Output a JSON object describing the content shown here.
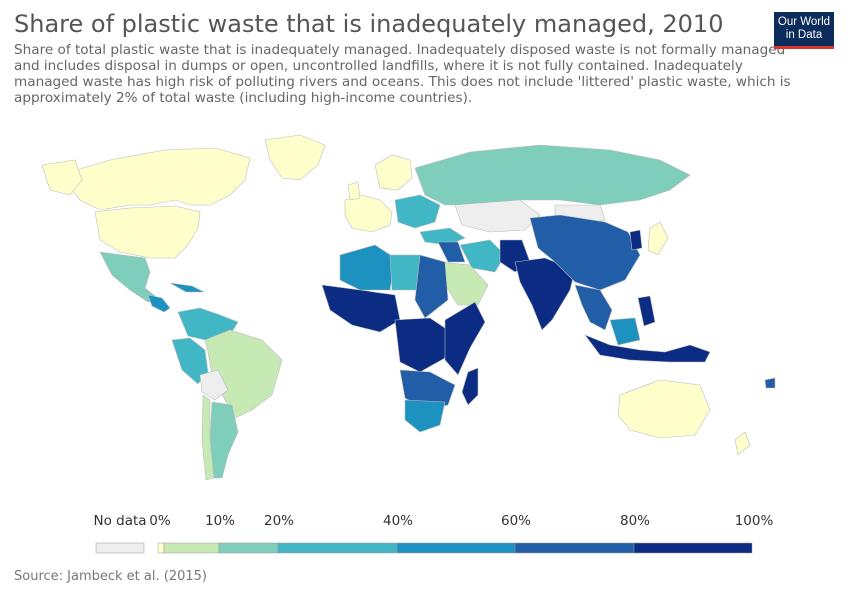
{
  "header": {
    "title": "Share of plastic waste that is inadequately managed, 2010",
    "subtitle_lines": [
      "Share of total plastic waste that is inadequately managed. Inadequately disposed waste is not formally managed",
      "and includes disposal in dumps or open, uncontrolled landfills, where it is not fully contained. Inadequately",
      "managed waste has high risk of polluting rivers and oceans. This does not include 'littered' plastic waste, which is",
      "approximately 2% of total waste (including high-income countries)."
    ],
    "logo_line1": "Our World",
    "logo_line2": "in Data"
  },
  "colors": {
    "no_data": "#eeeeee",
    "c0": "#ffffcc",
    "c0_10": "#c7e9b4",
    "c10_20": "#7fcdbb",
    "c20_40": "#41b6c4",
    "c40_60": "#1d91c0",
    "c60_80": "#225ea8",
    "c80_100": "#0c2c84"
  },
  "legend": {
    "no_data_label": "No data",
    "ticks": [
      "0%",
      "10%",
      "20%",
      "40%",
      "60%",
      "80%",
      "100%"
    ]
  },
  "source": "Source: Jambeck et al. (2015)"
}
